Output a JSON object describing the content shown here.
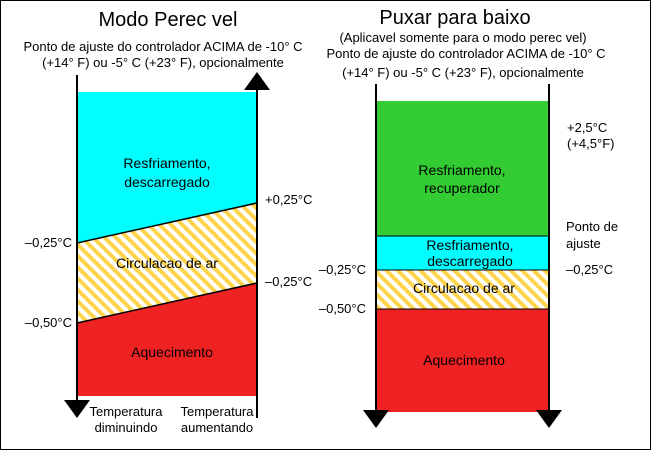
{
  "colors": {
    "cooling_unloaded": "#00ffff",
    "cooling_loaded": "#33cc33",
    "air_circulation_stripe": "#ffd44d",
    "heating": "#ee2222",
    "axis": "#000000",
    "border": "#000000"
  },
  "left": {
    "title": "Modo Perec vel",
    "subtitle_line1": "Ponto de ajuste do controlador ACIMA de -10° C",
    "subtitle_line2": "(+14° F) ou -5° C (+23° F), opcionalmente",
    "zones": {
      "cooling": [
        "Resfriamento,",
        "descarregado"
      ],
      "air": "Circulacao de ar",
      "heating": "Aquecimento"
    },
    "labels": {
      "minus_025_left": "–0,25°C",
      "minus_050_left": "–0,50°C",
      "plus_025_right": "+0,25°C",
      "minus_025_right": "–0,25°C"
    },
    "footer": {
      "decreasing": [
        "Temperatura",
        "diminuindo"
      ],
      "increasing": [
        "Temperatura",
        "aumentando"
      ]
    }
  },
  "right": {
    "title": "Puxar para baixo",
    "subtitle_line1": "(Aplicavel somente para o modo perec vel)",
    "subtitle_line2": "Ponto de ajuste do controlador ACIMA de -10° C",
    "subtitle_line3": "(+14° F) ou -5° C (+23° F), opcionalmente",
    "zones": {
      "cooling_loaded": [
        "Resfriamento,",
        "recuperador"
      ],
      "cooling_unloaded": [
        "Resfriamento,",
        "descarregado"
      ],
      "air": "Circulacao de ar",
      "heating": "Aquecimento"
    },
    "labels": {
      "plus_25": "+2,5°C",
      "plus_45f": "(+4,5°F)",
      "setpoint_line1": "Ponto de",
      "setpoint_line2": "ajuste",
      "minus_025_right": "–0,25°C",
      "minus_025_left": "–0,25°C",
      "minus_050_left": "–0,50°C"
    }
  }
}
